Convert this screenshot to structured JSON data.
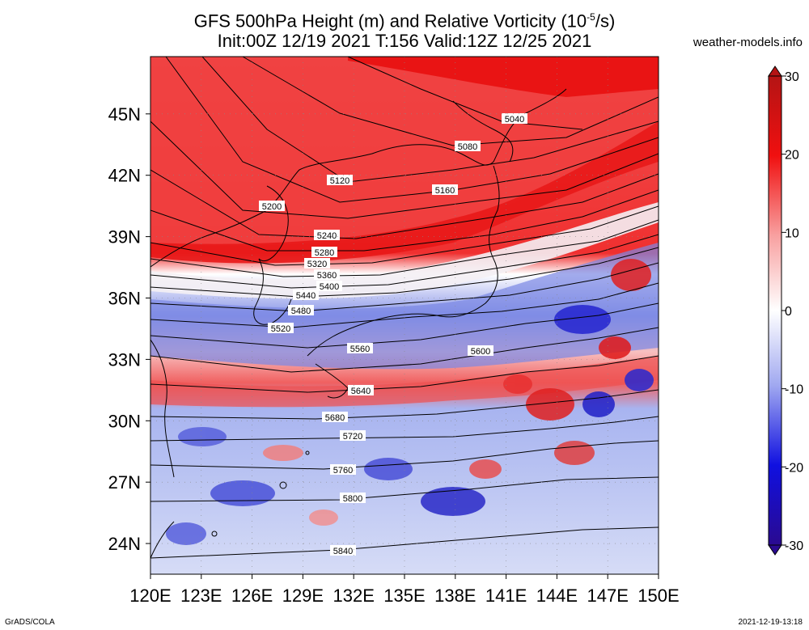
{
  "header": {
    "title_line1": "GFS 500hPa Height (m) and Relative Vorticity (10",
    "title_exp": "-5",
    "title_line1_end": "/s)",
    "title_line2": "Init:00Z 12/19 2021 T:156 Valid:12Z 12/25 2021",
    "site": "weather-models.info"
  },
  "footer": {
    "left": "GrADS/COLA",
    "right": "2021-12-19-13:18"
  },
  "map": {
    "lon_range": [
      120,
      150
    ],
    "lat_range": [
      22.5,
      47.8
    ],
    "x_ticks": [
      "120E",
      "123E",
      "126E",
      "129E",
      "132E",
      "135E",
      "138E",
      "141E",
      "144E",
      "147E",
      "150E"
    ],
    "y_ticks": [
      "24N",
      "27N",
      "30N",
      "33N",
      "36N",
      "39N",
      "42N",
      "45N"
    ],
    "x_tick_values": [
      120,
      123,
      126,
      129,
      132,
      135,
      138,
      141,
      144,
      147,
      150
    ],
    "y_tick_values": [
      24,
      27,
      30,
      33,
      36,
      39,
      42,
      45
    ]
  },
  "colorbar": {
    "labels": [
      "30",
      "20",
      "10",
      "0",
      "-10",
      "-20",
      "-30"
    ],
    "values": [
      30,
      20,
      10,
      0,
      -10,
      -20,
      -30
    ],
    "colors": {
      "top": "#b41414",
      "red": "#f01010",
      "lightred": "#f8a0a0",
      "zero": "#ffffff",
      "lightblue": "#a0a8f0",
      "blue": "#1010e0",
      "bottom": "#2a0a90"
    }
  },
  "contours": [
    {
      "label": "5040"
    },
    {
      "label": "5080"
    },
    {
      "label": "5120"
    },
    {
      "label": "5160"
    },
    {
      "label": "5200"
    },
    {
      "label": "5240"
    },
    {
      "label": "5280"
    },
    {
      "label": "5320"
    },
    {
      "label": "5360"
    },
    {
      "label": "5400"
    },
    {
      "label": "5440"
    },
    {
      "label": "5480"
    },
    {
      "label": "5520"
    },
    {
      "label": "5560"
    },
    {
      "label": "5600"
    },
    {
      "label": "5640"
    },
    {
      "label": "5680"
    },
    {
      "label": "5720"
    },
    {
      "label": "5760"
    },
    {
      "label": "5800"
    },
    {
      "label": "5840"
    }
  ]
}
